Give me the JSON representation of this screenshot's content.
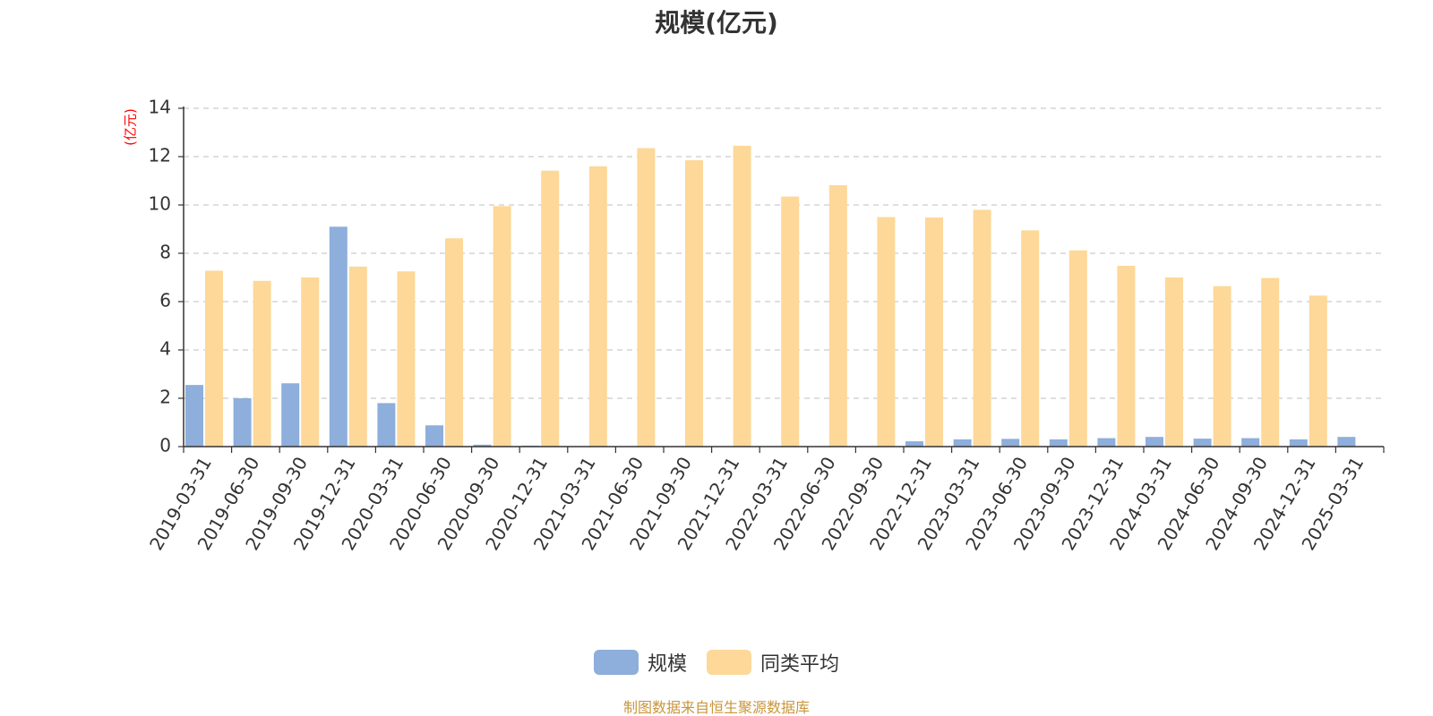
{
  "chart_data": {
    "type": "bar",
    "title": "规模(亿元)",
    "ylabel": "(亿元)",
    "xlabel": "",
    "ylim": [
      0,
      14
    ],
    "yticks": [
      0,
      2,
      4,
      6,
      8,
      10,
      12,
      14
    ],
    "grid": true,
    "legend_position": "bottom",
    "categories": [
      "2019-03-31",
      "2019-06-30",
      "2019-09-30",
      "2019-12-31",
      "2020-03-31",
      "2020-06-30",
      "2020-09-30",
      "2020-12-31",
      "2021-03-31",
      "2021-06-30",
      "2021-09-30",
      "2021-12-31",
      "2022-03-31",
      "2022-06-30",
      "2022-09-30",
      "2022-12-31",
      "2023-03-31",
      "2023-06-30",
      "2023-09-30",
      "2023-12-31",
      "2024-03-31",
      "2024-06-30",
      "2024-09-30",
      "2024-12-31",
      "2025-03-31"
    ],
    "series": [
      {
        "name": "规模",
        "color": "#8eaedb",
        "values": [
          2.55,
          2.0,
          2.62,
          9.1,
          1.8,
          0.88,
          0.08,
          0.04,
          0.02,
          0.01,
          0.01,
          0.01,
          0.01,
          0.01,
          0.01,
          0.22,
          0.3,
          0.32,
          0.3,
          0.35,
          0.4,
          0.33,
          0.35,
          0.3,
          0.4
        ]
      },
      {
        "name": "同类平均",
        "color": "#fdd899",
        "values": [
          7.28,
          6.86,
          7.0,
          7.45,
          7.25,
          8.62,
          9.95,
          11.42,
          11.6,
          12.35,
          11.85,
          12.45,
          10.35,
          10.82,
          9.5,
          9.48,
          9.8,
          8.95,
          8.12,
          7.48,
          7.0,
          6.64,
          6.98,
          6.25,
          null
        ]
      }
    ]
  },
  "source_note": "制图数据来自恒生聚源数据库"
}
